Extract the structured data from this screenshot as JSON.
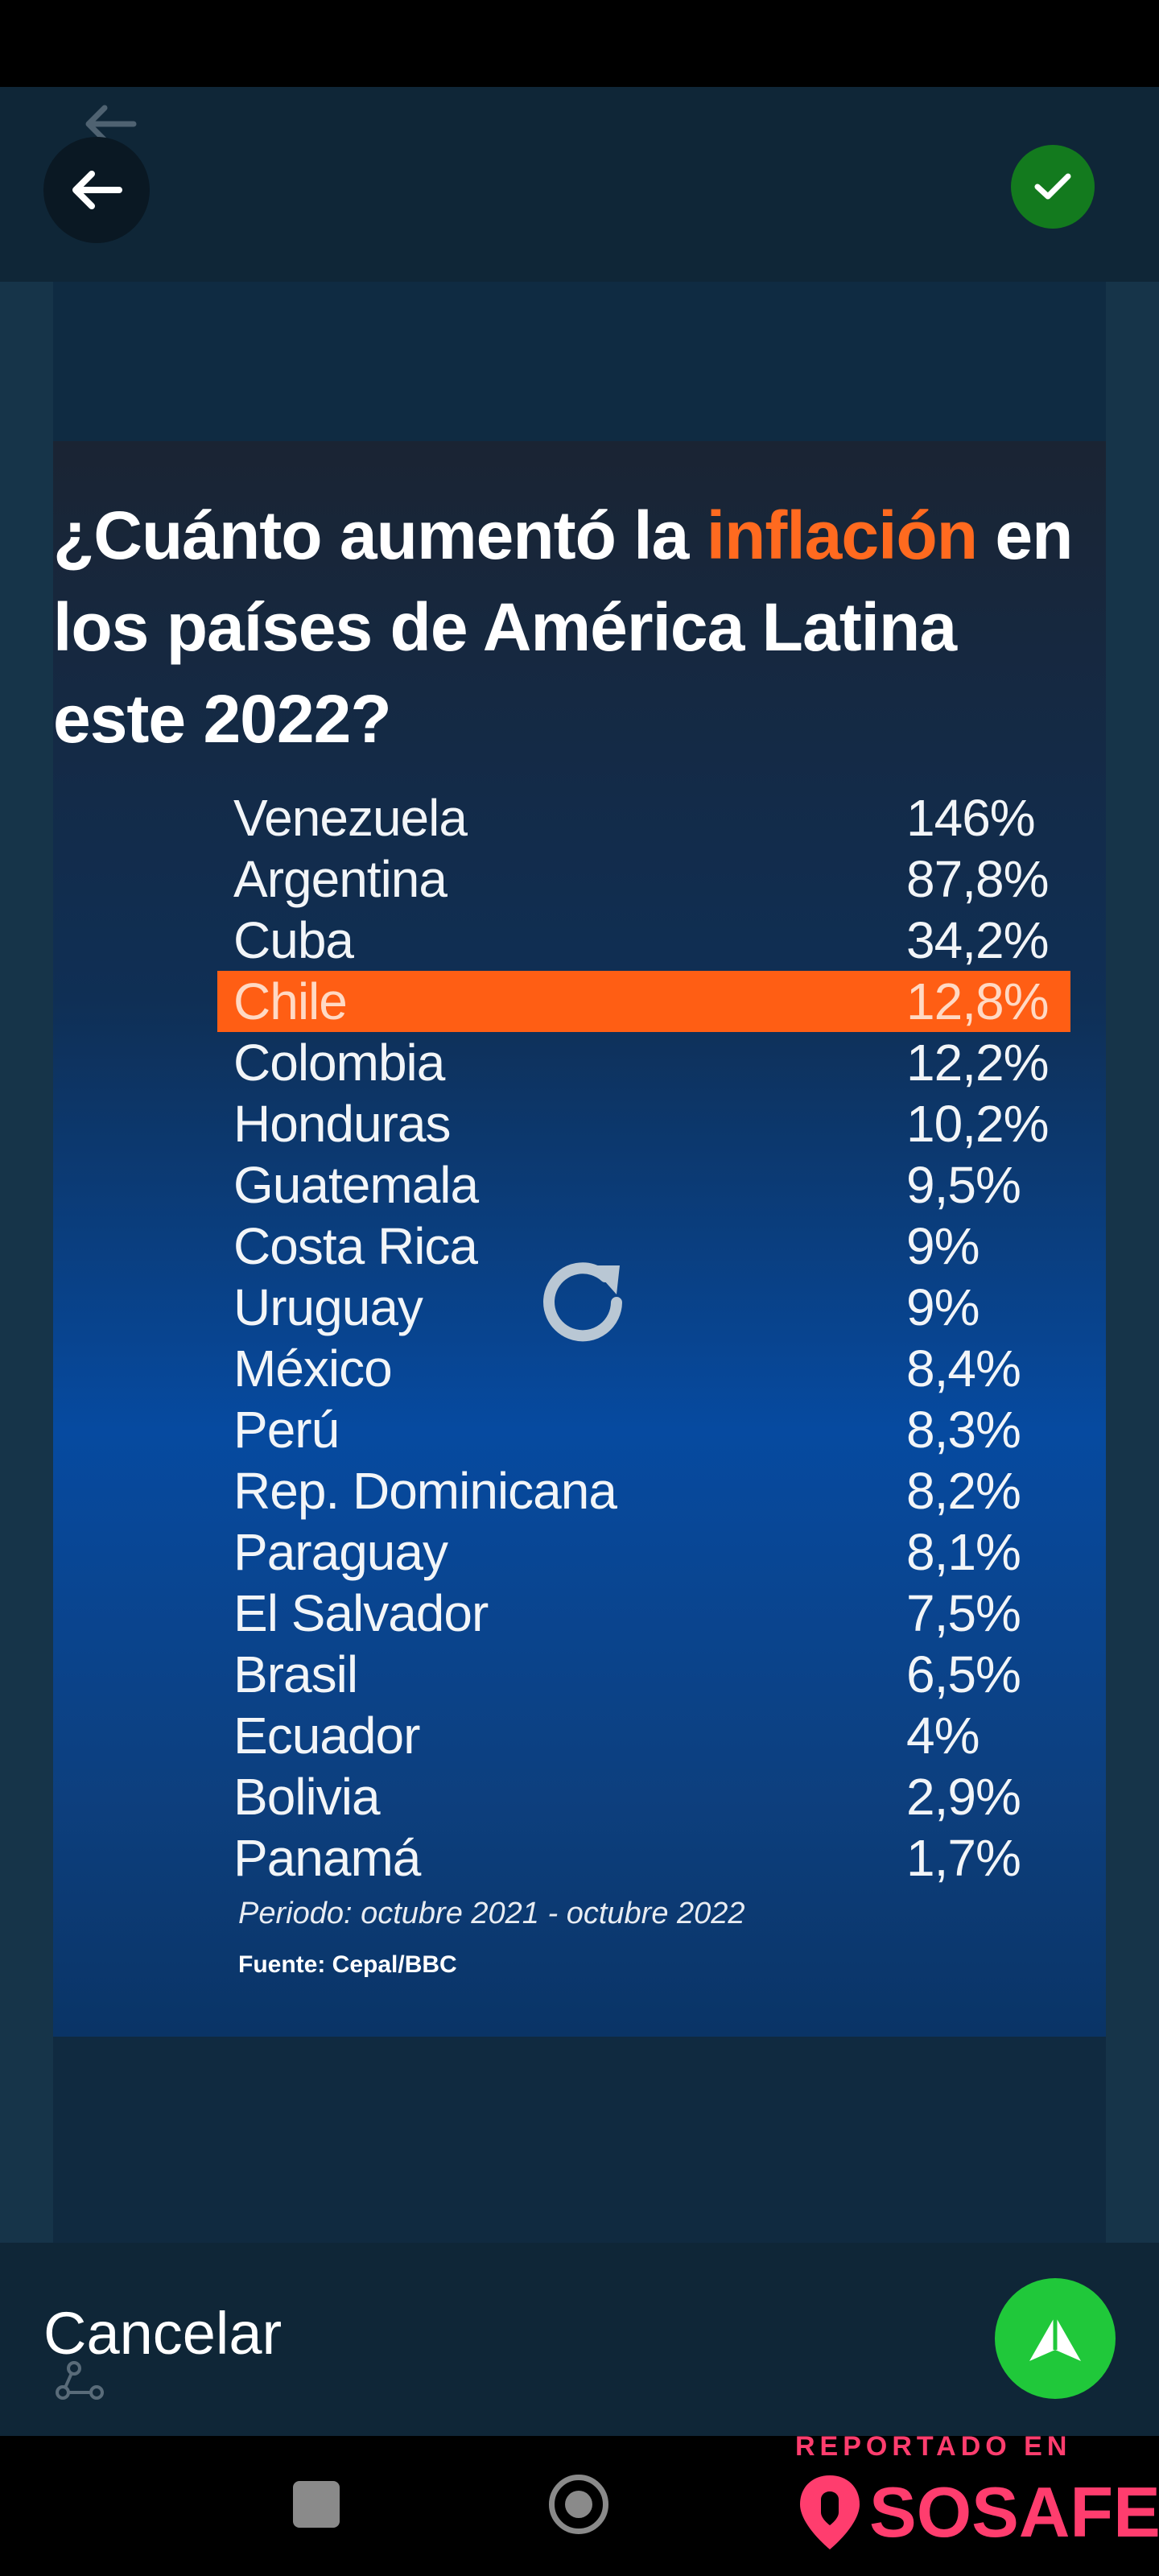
{
  "infographic": {
    "title_before": "¿Cuánto aumentó la ",
    "title_accent": "inflación",
    "title_after": " en los países de América Latina este 2022?",
    "rows": [
      {
        "country": "Venezuela",
        "value": "146%"
      },
      {
        "country": "Argentina",
        "value": "87,8%"
      },
      {
        "country": "Cuba",
        "value": "34,2%"
      },
      {
        "country": "Chile",
        "value": "12,8%",
        "highlight": true
      },
      {
        "country": "Colombia",
        "value": "12,2%"
      },
      {
        "country": "Honduras",
        "value": "10,2%"
      },
      {
        "country": "Guatemala",
        "value": "9,5%"
      },
      {
        "country": "Costa Rica",
        "value": "9%"
      },
      {
        "country": "Uruguay",
        "value": "9%"
      },
      {
        "country": "México",
        "value": "8,4%"
      },
      {
        "country": "Perú",
        "value": "8,3%"
      },
      {
        "country": "Rep. Dominicana",
        "value": "8,2%"
      },
      {
        "country": "Paraguay",
        "value": "8,1%"
      },
      {
        "country": "El Salvador",
        "value": "7,5%"
      },
      {
        "country": "Brasil",
        "value": "6,5%"
      },
      {
        "country": "Ecuador",
        "value": "4%"
      },
      {
        "country": "Bolivia",
        "value": "2,9%"
      },
      {
        "country": "Panamá",
        "value": "1,7%"
      }
    ],
    "period": "Periodo: octubre 2021 - octubre 2022",
    "source": "Fuente: Cepal/BBC"
  },
  "editor": {
    "cancel_label": "Cancelar",
    "back_icon": "arrow-left-icon",
    "confirm_icon": "check-icon",
    "rotate_icon": "refresh-icon",
    "send_icon": "send-icon"
  },
  "watermark": {
    "top": "REPORTADO EN",
    "brand": "SOSAFE"
  },
  "colors": {
    "accent": "#ff6a1f",
    "highlight": "#ff5e14",
    "confirm": "#137a1e",
    "send": "#20c83a",
    "brand": "#ff3d6e"
  }
}
